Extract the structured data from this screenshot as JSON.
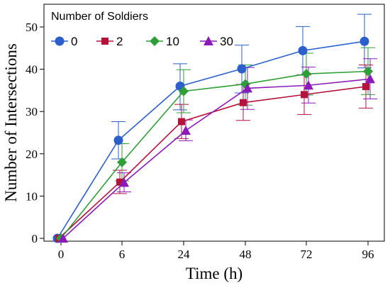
{
  "chart_data": {
    "type": "line",
    "xlabel": "Time (h)",
    "ylabel": "Number of Intersections",
    "categories": [
      "0",
      "6",
      "24",
      "48",
      "72",
      "96"
    ],
    "ylim": [
      0,
      54
    ],
    "yticks": [
      0,
      10,
      20,
      30,
      40,
      50
    ],
    "grid": false,
    "legend": {
      "title": "Number of Soldiers",
      "placement": "top-left"
    },
    "series": [
      {
        "name": "0",
        "color": "#2b5fcc",
        "marker": "circle",
        "values": [
          0,
          23.2,
          36.0,
          40.1,
          44.4,
          46.6
        ],
        "err_low": [
          0,
          18.8,
          30.4,
          34.4,
          38.6,
          40.3
        ],
        "err_high": [
          0,
          27.6,
          41.3,
          45.7,
          50.1,
          53.0
        ]
      },
      {
        "name": "2",
        "color": "#b5123b",
        "marker": "square",
        "values": [
          0,
          13.3,
          27.6,
          32.1,
          34.0,
          35.9
        ],
        "err_low": [
          0,
          10.6,
          23.6,
          27.9,
          29.3,
          30.8
        ],
        "err_high": [
          0,
          16.1,
          31.7,
          36.4,
          38.7,
          41.0
        ]
      },
      {
        "name": "10",
        "color": "#2e9e36",
        "marker": "diamond",
        "values": [
          0,
          18.0,
          34.8,
          36.5,
          38.9,
          39.5
        ],
        "err_low": [
          0,
          13.6,
          29.7,
          31.5,
          33.9,
          34.0
        ],
        "err_high": [
          0,
          22.4,
          39.9,
          41.0,
          43.8,
          45.1
        ]
      },
      {
        "name": "30",
        "color": "#8a1bb8",
        "marker": "triangle",
        "values": [
          0,
          13.2,
          25.5,
          35.5,
          36.2,
          37.7
        ],
        "err_low": [
          0,
          11.0,
          23.1,
          30.5,
          32.0,
          33.0
        ],
        "err_high": [
          0,
          15.5,
          28.0,
          40.4,
          40.5,
          42.5
        ]
      }
    ]
  }
}
